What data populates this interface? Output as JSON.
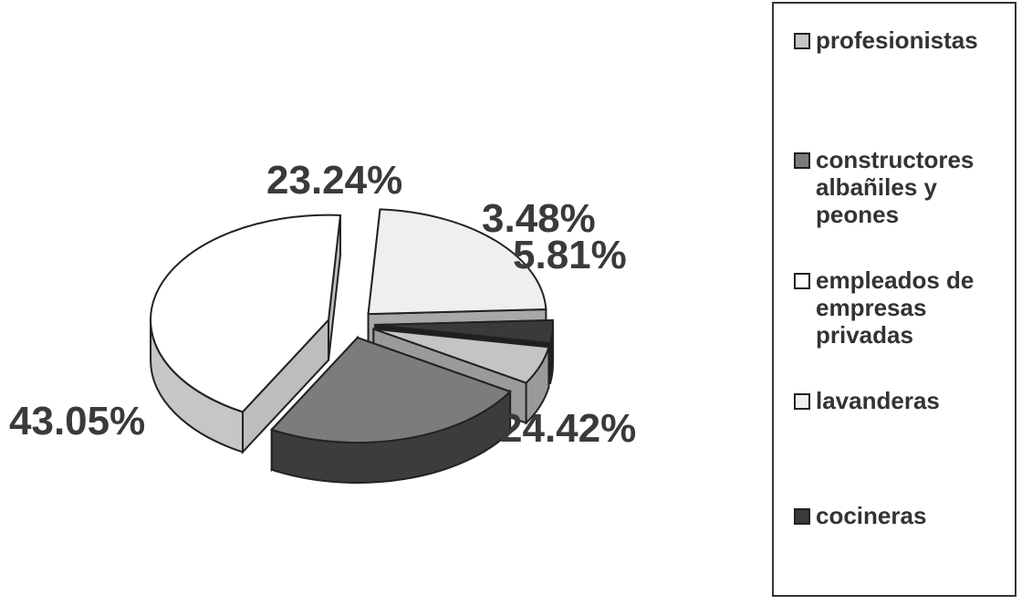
{
  "chart_data": {
    "type": "pie",
    "categories": [
      "profesionistas",
      "constructores\nalbañiles y\npeones",
      "empleados de\nempresas\nprivadas",
      "lavanderas",
      "cocineras"
    ],
    "values": [
      5.81,
      24.42,
      43.05,
      23.24,
      3.48
    ],
    "data_labels": [
      "5.81%",
      "24.42%",
      "43.05%",
      "23.24%",
      "3.48%"
    ],
    "colors": [
      "#c4c4c4",
      "#7c7c7c",
      "#ffffff",
      "#efefef",
      "#3a3a3a"
    ],
    "title": "",
    "legend_position": "right",
    "exploded": true,
    "three_d": true
  }
}
